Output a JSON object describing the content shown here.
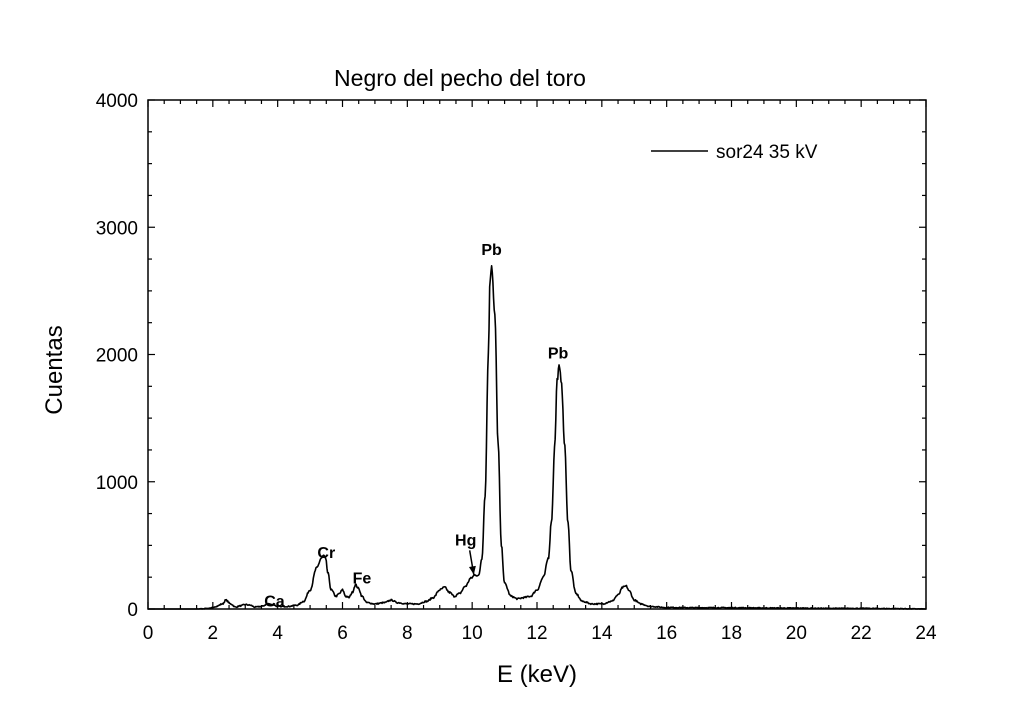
{
  "chart_data": {
    "type": "line",
    "title": "Negro del pecho del toro",
    "xlabel": "E (keV)",
    "ylabel": "Cuentas",
    "xlim": [
      0,
      24
    ],
    "ylim": [
      0,
      4000
    ],
    "x_ticks": [
      "0",
      "2",
      "4",
      "6",
      "8",
      "10",
      "12",
      "14",
      "16",
      "18",
      "20",
      "22",
      "24"
    ],
    "y_ticks": [
      "0",
      "1000",
      "2000",
      "3000",
      "4000"
    ],
    "legend": {
      "position": "top-right"
    },
    "series": [
      {
        "name": "sor24 35 kV",
        "color": "#000000",
        "x": [
          0,
          1.5,
          1.9,
          2.1,
          2.3,
          2.4,
          2.55,
          2.7,
          2.85,
          3.0,
          3.15,
          3.3,
          3.5,
          3.7,
          3.85,
          4.0,
          4.3,
          4.6,
          4.8,
          5.0,
          5.2,
          5.35,
          5.42,
          5.48,
          5.55,
          5.65,
          5.8,
          5.9,
          6.0,
          6.1,
          6.2,
          6.3,
          6.4,
          6.5,
          6.6,
          6.75,
          7.0,
          7.3,
          7.5,
          7.7,
          8.0,
          8.3,
          8.6,
          8.8,
          9.0,
          9.15,
          9.3,
          9.45,
          9.6,
          9.8,
          9.95,
          10.1,
          10.2,
          10.3,
          10.4,
          10.5,
          10.55,
          10.6,
          10.7,
          10.8,
          10.9,
          11.0,
          11.2,
          11.4,
          11.6,
          11.8,
          12.0,
          12.2,
          12.35,
          12.45,
          12.55,
          12.62,
          12.68,
          12.75,
          12.85,
          12.95,
          13.05,
          13.2,
          13.4,
          13.7,
          14.0,
          14.3,
          14.5,
          14.65,
          14.75,
          14.85,
          15.0,
          15.2,
          15.5,
          16.0,
          17.0,
          18.0,
          19.0,
          20.0,
          21.0,
          22.0,
          23.0,
          24.0
        ],
        "y": [
          0,
          0,
          5,
          20,
          40,
          70,
          40,
          15,
          25,
          35,
          30,
          15,
          20,
          40,
          35,
          20,
          20,
          30,
          60,
          150,
          320,
          400,
          420,
          390,
          280,
          150,
          100,
          120,
          150,
          100,
          90,
          130,
          190,
          160,
          100,
          50,
          40,
          50,
          70,
          50,
          40,
          40,
          60,
          90,
          150,
          170,
          130,
          100,
          120,
          180,
          240,
          270,
          260,
          400,
          900,
          2000,
          2600,
          2700,
          2300,
          1300,
          500,
          200,
          100,
          80,
          90,
          100,
          150,
          250,
          400,
          700,
          1300,
          1800,
          1900,
          1800,
          1300,
          700,
          300,
          120,
          60,
          40,
          40,
          60,
          110,
          170,
          180,
          140,
          70,
          40,
          20,
          12,
          10,
          10,
          8,
          7,
          5,
          5,
          3,
          0
        ]
      }
    ],
    "annotations": [
      {
        "text": "Ca",
        "x": 3.9,
        "y": 20
      },
      {
        "text": "Cr",
        "x": 5.5,
        "y": 400
      },
      {
        "text": "Fe",
        "x": 6.6,
        "y": 200
      },
      {
        "text": "Hg",
        "x": 9.8,
        "y": 500,
        "arrow_to": [
          10.05,
          270
        ]
      },
      {
        "text": "Pb",
        "x": 10.6,
        "y": 2780
      },
      {
        "text": "Pb",
        "x": 12.65,
        "y": 1970
      }
    ]
  }
}
